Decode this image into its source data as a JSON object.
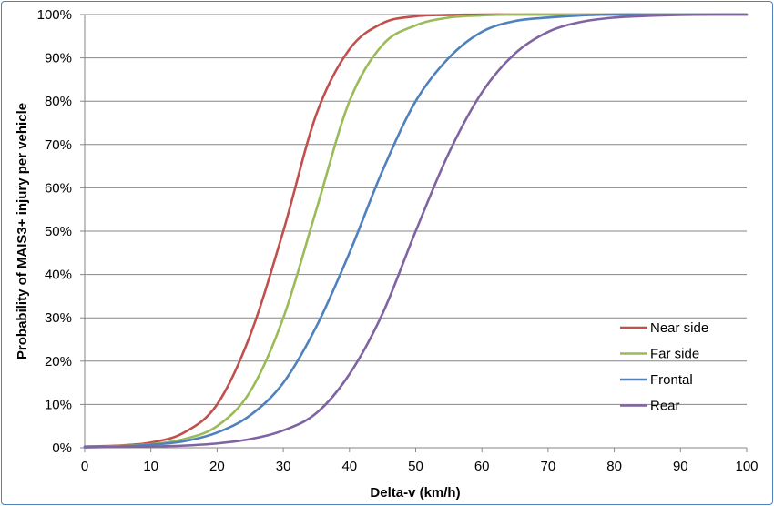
{
  "chart_data": {
    "type": "line",
    "title": "",
    "xlabel": "Delta-v (km/h)",
    "ylabel": "Probability of MAIS3+ injury per vehicle",
    "xlim": [
      0,
      100
    ],
    "ylim": [
      0,
      100
    ],
    "x_ticks": [
      "0",
      "10",
      "20",
      "30",
      "40",
      "50",
      "60",
      "70",
      "80",
      "90",
      "100"
    ],
    "y_ticks": [
      "0%",
      "10%",
      "20%",
      "30%",
      "40%",
      "50%",
      "60%",
      "70%",
      "80%",
      "90%",
      "100%"
    ],
    "grid": "horizontal",
    "legend_position": "bottom-right",
    "x": [
      0,
      5,
      10,
      15,
      20,
      25,
      30,
      35,
      40,
      45,
      50,
      55,
      60,
      65,
      70,
      75,
      80,
      85,
      90,
      95,
      100
    ],
    "series": [
      {
        "name": "Near side",
        "color": "#c0504d",
        "values": [
          0.3,
          0.5,
          1.2,
          3.5,
          10,
          26,
          50,
          77,
          92,
          98,
          99.6,
          99.9,
          100,
          100,
          100,
          100,
          100,
          100,
          100,
          100,
          100
        ]
      },
      {
        "name": "Far side",
        "color": "#9bbb59",
        "values": [
          0.2,
          0.4,
          0.8,
          2,
          5,
          13,
          30,
          55,
          80,
          93,
          97.5,
          99.3,
          99.8,
          100,
          100,
          100,
          100,
          100,
          100,
          100,
          100
        ]
      },
      {
        "name": "Frontal",
        "color": "#4f81bd",
        "values": [
          0.2,
          0.3,
          0.7,
          1.5,
          3.5,
          7.5,
          15,
          28,
          45,
          64,
          80,
          90,
          96,
          98.5,
          99.3,
          99.8,
          100,
          100,
          100,
          100,
          100
        ]
      },
      {
        "name": "Rear",
        "color": "#8064a2",
        "values": [
          0.1,
          0.2,
          0.3,
          0.5,
          1,
          2,
          4,
          8,
          17,
          31,
          50,
          68,
          82,
          91,
          96,
          98.3,
          99.3,
          99.7,
          99.9,
          100,
          100
        ]
      }
    ],
    "gridline_color": "#868686",
    "axis_color": "#868686"
  }
}
